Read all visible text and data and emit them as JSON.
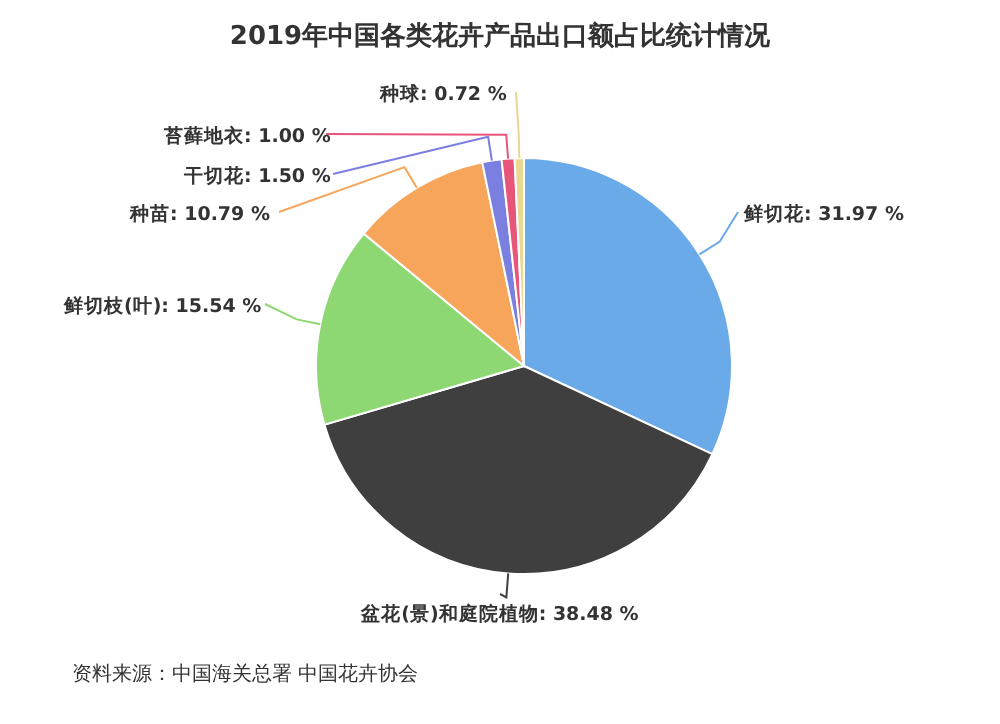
{
  "chart_data": {
    "type": "pie",
    "title": "2019年中国各类花卉产品出口额占比统计情况",
    "categories": [
      "鲜切花",
      "盆花(景)和庭院植物",
      "鲜切枝(叶)",
      "种苗",
      "干切花",
      "苔藓地衣",
      "种球"
    ],
    "values": [
      31.97,
      38.48,
      15.54,
      10.79,
      1.5,
      1.0,
      0.72
    ],
    "value_labels": [
      "31.97 %",
      "38.48 %",
      "15.54 %",
      "10.79 %",
      "1.50 %",
      "1.00 %",
      "0.72 %"
    ],
    "colors": [
      "#6aaae8",
      "#3f3f3f",
      "#8ed873",
      "#f7a55a",
      "#7b7fe0",
      "#e8557a",
      "#e8d890"
    ],
    "annotations": [
      "资料来源：中国海关总署 中国花卉协会"
    ]
  }
}
